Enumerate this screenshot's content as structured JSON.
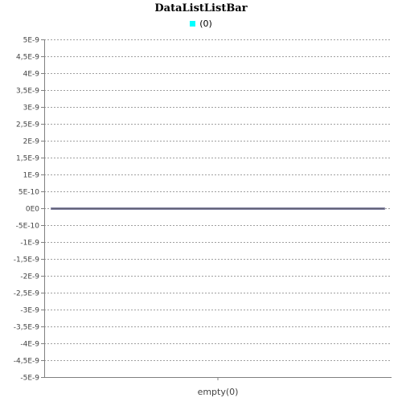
{
  "chart_data": {
    "type": "bar",
    "title": "DataListListBar",
    "categories": [
      "empty(0)"
    ],
    "series": [
      {
        "name": "(0)",
        "values": [
          0
        ]
      }
    ],
    "ylim": [
      -5e-09,
      5e-09
    ],
    "yticks": [
      5e-09,
      4.5e-09,
      4e-09,
      3.5e-09,
      3e-09,
      2.5e-09,
      2e-09,
      1.5e-09,
      1e-09,
      5e-10,
      0,
      -5e-10,
      -1e-09,
      -1.5e-09,
      -2e-09,
      -2.5e-09,
      -3e-09,
      -3.5e-09,
      -4e-09,
      -4.5e-09,
      -5e-09
    ],
    "ytick_labels": [
      "5E-9",
      "4,5E-9",
      "4E-9",
      "3,5E-9",
      "3E-9",
      "2,5E-9",
      "2E-9",
      "1,5E-9",
      "1E-9",
      "5E-10",
      "0E0",
      "-5E-10",
      "-1E-9",
      "-1,5E-9",
      "-2E-9",
      "-2,5E-9",
      "-3E-9",
      "-3,5E-9",
      "-4E-9",
      "-4,5E-9",
      "-5E-9"
    ],
    "grid": true,
    "legend_position": "top",
    "series_color": "#00ffff",
    "bar_edge_color": "#8080a0"
  }
}
